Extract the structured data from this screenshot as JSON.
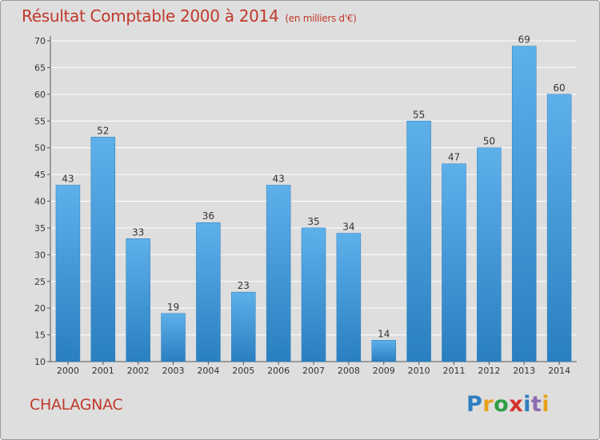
{
  "title": "Résultat Comptable 2000 à 2014",
  "subtitle": "(en milliers d'€)",
  "location": "CHALAGNAC",
  "logo": {
    "letters": [
      "P",
      "r",
      "o",
      "x",
      "i",
      "t",
      "i"
    ],
    "colors": [
      "#2f7fc1",
      "#e8a21a",
      "#2f9e44",
      "#d6322c",
      "#2f7fc1",
      "#8c6bb1",
      "#e8a21a"
    ]
  },
  "colors": {
    "bar_top": "#5eb0ea",
    "bar_bottom": "#2a7fc0",
    "title": "#c0392b",
    "background": "#dedede"
  },
  "chart_data": {
    "type": "bar",
    "categories": [
      "2000",
      "2001",
      "2002",
      "2003",
      "2004",
      "2005",
      "2006",
      "2007",
      "2008",
      "2009",
      "2010",
      "2011",
      "2012",
      "2013",
      "2014"
    ],
    "values": [
      43,
      52,
      33,
      19,
      36,
      23,
      43,
      35,
      34,
      14,
      55,
      47,
      50,
      69,
      60
    ],
    "title": "Résultat Comptable 2000 à 2014",
    "ylim": [
      10,
      70
    ],
    "yticks": [
      10,
      15,
      20,
      25,
      30,
      35,
      40,
      45,
      50,
      55,
      60,
      65,
      70
    ],
    "grid": true,
    "data_labels": true
  }
}
